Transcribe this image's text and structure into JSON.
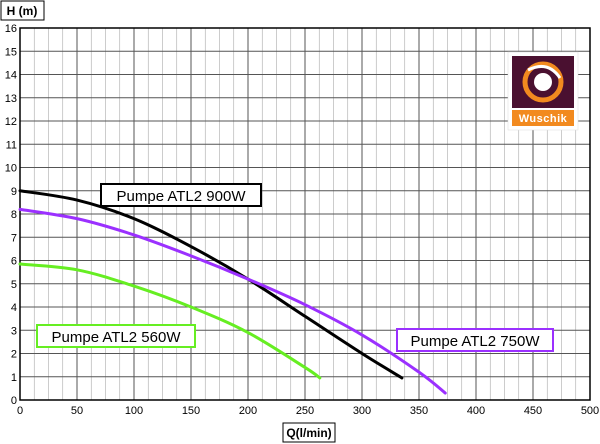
{
  "chart_data": {
    "type": "line",
    "xlabel": "Q(l/min)",
    "ylabel": "H (m)",
    "xlim": [
      0,
      500
    ],
    "ylim": [
      0,
      16
    ],
    "x_ticks": [
      0,
      50,
      100,
      150,
      200,
      250,
      300,
      350,
      400,
      450,
      500
    ],
    "y_ticks": [
      0,
      1,
      2,
      3,
      4,
      5,
      6,
      7,
      8,
      9,
      10,
      11,
      12,
      13,
      14,
      15,
      16
    ],
    "grid": true,
    "series": [
      {
        "name": "Pumpe ATL2 900W",
        "color": "#000000",
        "x": [
          0,
          50,
          100,
          150,
          200,
          250,
          300,
          335
        ],
        "y": [
          9.0,
          8.6,
          7.8,
          6.6,
          5.2,
          3.6,
          2.0,
          0.95
        ]
      },
      {
        "name": "Pumpe ATL2 750W",
        "color": "#9b30ff",
        "x": [
          0,
          50,
          100,
          150,
          200,
          250,
          300,
          350,
          373
        ],
        "y": [
          8.2,
          7.8,
          7.1,
          6.2,
          5.2,
          4.1,
          2.8,
          1.2,
          0.3
        ]
      },
      {
        "name": "Pumpe ATL2 560W",
        "color": "#66ee22",
        "x": [
          0,
          50,
          100,
          150,
          200,
          250,
          263
        ],
        "y": [
          5.85,
          5.6,
          4.9,
          4.0,
          2.9,
          1.4,
          0.95
        ]
      }
    ]
  },
  "logo": {
    "text": "Wuschik"
  }
}
